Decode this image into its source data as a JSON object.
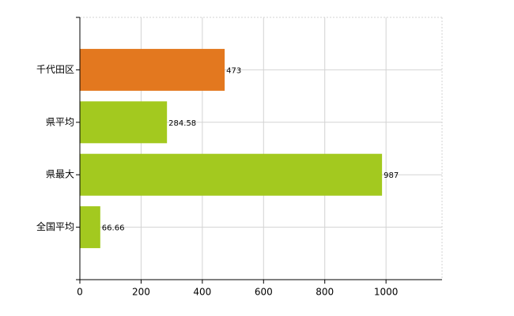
{
  "chart_data": {
    "type": "hbar",
    "categories": [
      "千代田区",
      "県平均",
      "県最大",
      "全国平均"
    ],
    "values": [
      473,
      284.58,
      987,
      66.66
    ],
    "colors": [
      "#e3781f",
      "#a3c91f",
      "#a3c91f",
      "#a3c91f"
    ],
    "xlim": [
      0,
      1183
    ],
    "xticks": [
      0,
      200,
      400,
      600,
      800,
      1000
    ],
    "grid": true
  }
}
